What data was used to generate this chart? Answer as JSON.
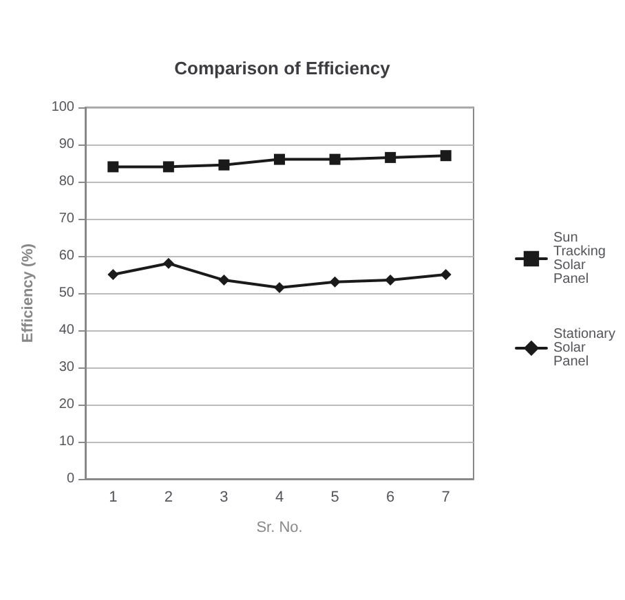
{
  "chart_data": {
    "type": "line",
    "title": "Comparison of Efficiency",
    "xlabel": "Sr. No.",
    "ylabel": "Efficiency (%)",
    "categories": [
      "1",
      "2",
      "3",
      "4",
      "5",
      "6",
      "7"
    ],
    "series": [
      {
        "name": "Sun Tracking Solar Panel",
        "color": "#1a1a1a",
        "marker": "square",
        "values": [
          84,
          84,
          84.5,
          86,
          86,
          86.5,
          87
        ]
      },
      {
        "name": "Stationary Solar Panel",
        "color": "#1a1a1a",
        "marker": "diamond",
        "values": [
          55,
          58,
          53.5,
          51.5,
          53,
          53.5,
          55
        ]
      }
    ],
    "ylim": [
      0,
      100
    ],
    "yticks": [
      0,
      10,
      20,
      30,
      40,
      50,
      60,
      70,
      80,
      90,
      100
    ],
    "grid": "y",
    "legend": "right"
  }
}
